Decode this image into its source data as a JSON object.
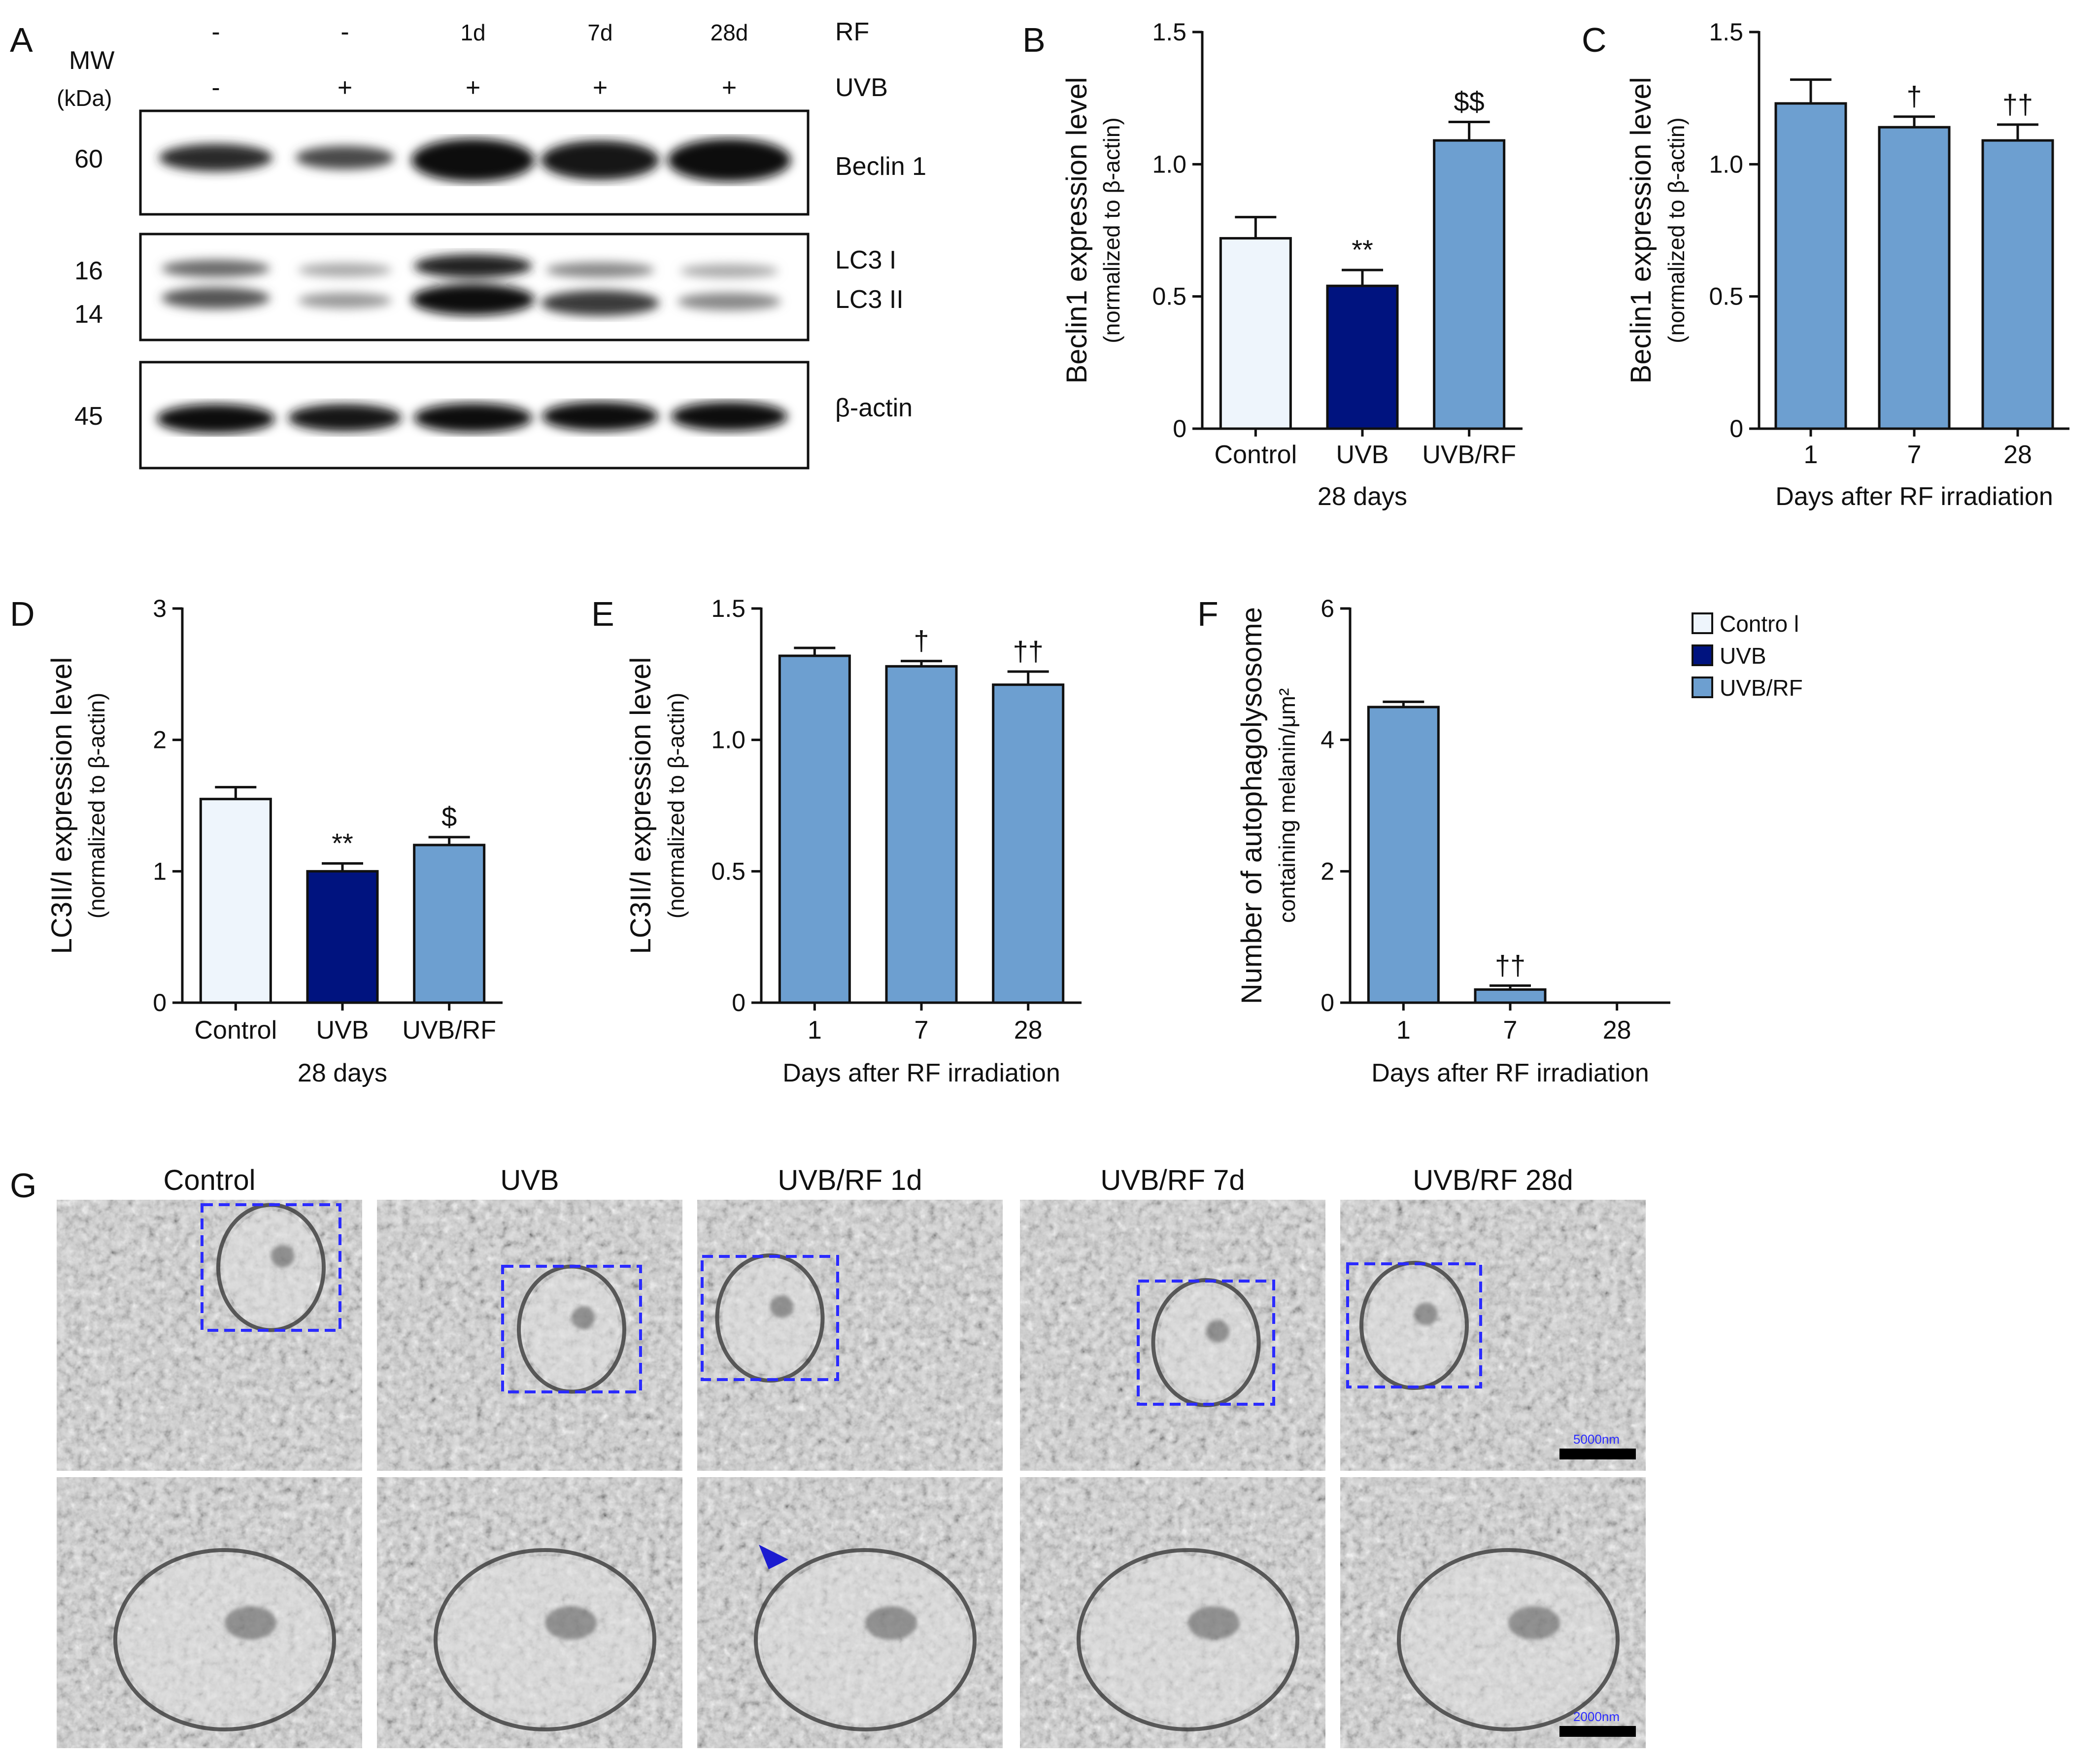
{
  "colors": {
    "control": "#eef5fc",
    "uvb": "#00137f",
    "uvb_rf": "#6d9fd0",
    "axis": "#111111",
    "roi_box": "#2b2bff"
  },
  "panel_letters": [
    "A",
    "B",
    "C",
    "D",
    "E",
    "F",
    "G"
  ],
  "western_blot": {
    "mw_label_1": "MW",
    "mw_label_2": "(kDa)",
    "condition_rows": [
      {
        "name": "RF",
        "values": [
          "-",
          "-",
          "1d",
          "7d",
          "28d"
        ]
      },
      {
        "name": "UVB",
        "values": [
          "-",
          "+",
          "+",
          "+",
          "+"
        ]
      }
    ],
    "blots": [
      {
        "mw": [
          "60"
        ],
        "labels": [
          "Beclin 1"
        ]
      },
      {
        "mw": [
          "16",
          "14"
        ],
        "labels": [
          "LC3 I",
          "LC3 II"
        ]
      },
      {
        "mw": [
          "45"
        ],
        "labels": [
          "β-actin"
        ]
      }
    ]
  },
  "chart_data": [
    {
      "panel": "B",
      "type": "bar",
      "categories": [
        "Control",
        "UVB",
        "UVB/RF"
      ],
      "values": [
        0.72,
        0.54,
        1.09
      ],
      "errors": [
        0.08,
        0.06,
        0.07
      ],
      "colors": [
        "#eef5fc",
        "#00137f",
        "#6d9fd0"
      ],
      "significance": [
        "",
        "**",
        "$$"
      ],
      "ylim": [
        0,
        1.5
      ],
      "yticks": [
        "0",
        "0.5",
        "1.0",
        "1.5"
      ],
      "ylabel": "Beclin1 expression level",
      "ylabel_sub": "(normalized to β-actin)",
      "xlabel": "28 days"
    },
    {
      "panel": "C",
      "type": "bar",
      "categories": [
        "1",
        "7",
        "28"
      ],
      "values": [
        1.23,
        1.14,
        1.09
      ],
      "errors": [
        0.09,
        0.04,
        0.06
      ],
      "colors": [
        "#6d9fd0",
        "#6d9fd0",
        "#6d9fd0"
      ],
      "significance": [
        "",
        "†",
        "††"
      ],
      "ylim": [
        0,
        1.5
      ],
      "yticks": [
        "0",
        "0.5",
        "1.0",
        "1.5"
      ],
      "ylabel": "Beclin1 expression level",
      "ylabel_sub": "(normalized to β-actin)",
      "xlabel": "Days after RF irradiation"
    },
    {
      "panel": "D",
      "type": "bar",
      "categories": [
        "Control",
        "UVB",
        "UVB/RF"
      ],
      "values": [
        1.55,
        1.0,
        1.2
      ],
      "errors": [
        0.09,
        0.06,
        0.06
      ],
      "colors": [
        "#eef5fc",
        "#00137f",
        "#6d9fd0"
      ],
      "significance": [
        "",
        "**",
        "$"
      ],
      "ylim": [
        0,
        3
      ],
      "yticks": [
        "0",
        "1",
        "2",
        "3"
      ],
      "ylabel": "LC3II/I expression level",
      "ylabel_sub": "(normalized to β-actin)",
      "xlabel": "28 days"
    },
    {
      "panel": "E",
      "type": "bar",
      "categories": [
        "1",
        "7",
        "28"
      ],
      "values": [
        1.32,
        1.28,
        1.21
      ],
      "errors": [
        0.03,
        0.02,
        0.05
      ],
      "colors": [
        "#6d9fd0",
        "#6d9fd0",
        "#6d9fd0"
      ],
      "significance": [
        "",
        "†",
        "††"
      ],
      "ylim": [
        0,
        1.5
      ],
      "yticks": [
        "0",
        "0.5",
        "1.0",
        "1.5"
      ],
      "ylabel": "LC3II/I expression level",
      "ylabel_sub": "(normalized to β-actin)",
      "xlabel": "Days after RF irradiation"
    },
    {
      "panel": "F",
      "type": "bar",
      "categories": [
        "1",
        "7",
        "28"
      ],
      "values": [
        4.5,
        0.2,
        0.0
      ],
      "errors": [
        0.08,
        0.06,
        0.0
      ],
      "colors": [
        "#6d9fd0",
        "#6d9fd0",
        "#6d9fd0"
      ],
      "significance": [
        "",
        "††",
        ""
      ],
      "ylim": [
        0,
        6
      ],
      "yticks": [
        "0",
        "2",
        "4",
        "6"
      ],
      "ylabel": "Number of autophagolysosome",
      "ylabel_sub": "containing melanin/μm²",
      "xlabel": "Days after RF irradiation"
    }
  ],
  "legend": [
    {
      "label": "Contro l",
      "color": "#eef5fc"
    },
    {
      "label": "UVB",
      "color": "#00137f"
    },
    {
      "label": "UVB/RF",
      "color": "#6d9fd0"
    }
  ],
  "em_images": {
    "titles": [
      "Control",
      "UVB",
      "UVB/RF 1d",
      "UVB/RF 7d",
      "UVB/RF 28d"
    ],
    "scale_top": "5000nm",
    "scale_bottom": "2000nm"
  }
}
